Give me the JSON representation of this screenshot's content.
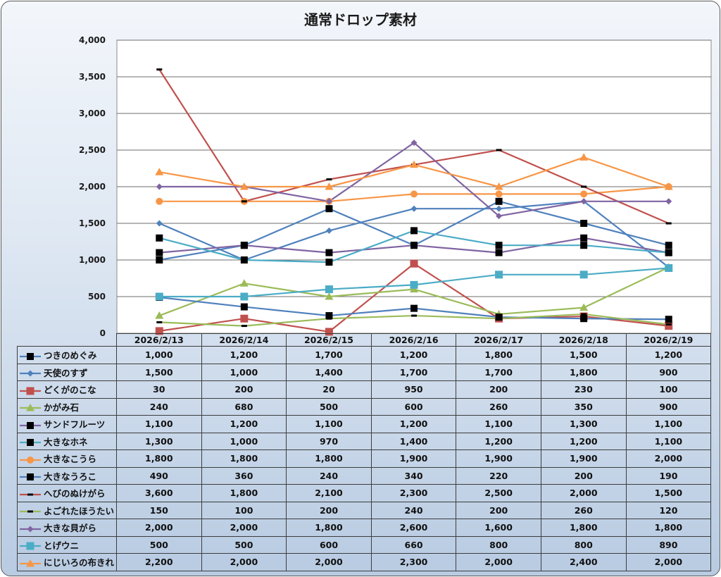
{
  "chart_data": {
    "type": "line",
    "title": "通常ドロップ素材",
    "xlabel": "",
    "ylabel": "",
    "ylim": [
      0,
      4000
    ],
    "yticks": [
      0,
      500,
      1000,
      1500,
      2000,
      2500,
      3000,
      3500,
      4000
    ],
    "ytick_labels": [
      "0",
      "500",
      "1,000",
      "1,500",
      "2,000",
      "2,500",
      "3,000",
      "3,500",
      "4,000"
    ],
    "grid": true,
    "legend": "data-table-left",
    "categories": [
      "2026/2/13",
      "2026/2/14",
      "2026/2/15",
      "2026/2/16",
      "2026/2/17",
      "2026/2/18",
      "2026/2/19"
    ],
    "series": [
      {
        "name": "つきのめぐみ",
        "color": "#4f81bd",
        "marker": "square-black",
        "values": [
          1000,
          1200,
          1700,
          1200,
          1800,
          1500,
          1200
        ],
        "labels": [
          "1,000",
          "1,200",
          "1,700",
          "1,200",
          "1,800",
          "1,500",
          "1,200"
        ]
      },
      {
        "name": "天使のすず",
        "color": "#4f81bd",
        "marker": "diamond",
        "values": [
          1500,
          1000,
          1400,
          1700,
          1700,
          1800,
          900
        ],
        "labels": [
          "1,500",
          "1,000",
          "1,400",
          "1,700",
          "1,700",
          "1,800",
          "900"
        ]
      },
      {
        "name": "どくがのこな",
        "color": "#c0504d",
        "marker": "square",
        "values": [
          30,
          200,
          20,
          950,
          200,
          230,
          100
        ],
        "labels": [
          "30",
          "200",
          "20",
          "950",
          "200",
          "230",
          "100"
        ]
      },
      {
        "name": "かがみ石",
        "color": "#9bbb59",
        "marker": "triangle",
        "values": [
          240,
          680,
          500,
          600,
          260,
          350,
          900
        ],
        "labels": [
          "240",
          "680",
          "500",
          "600",
          "260",
          "350",
          "900"
        ]
      },
      {
        "name": "サンドフルーツ",
        "color": "#8064a2",
        "marker": "square-black",
        "values": [
          1100,
          1200,
          1100,
          1200,
          1100,
          1300,
          1100
        ],
        "labels": [
          "1,100",
          "1,200",
          "1,100",
          "1,200",
          "1,100",
          "1,300",
          "1,100"
        ]
      },
      {
        "name": "大きなホネ",
        "color": "#4bacc6",
        "marker": "square-black",
        "values": [
          1300,
          1000,
          970,
          1400,
          1200,
          1200,
          1100
        ],
        "labels": [
          "1,300",
          "1,000",
          "970",
          "1,400",
          "1,200",
          "1,200",
          "1,100"
        ]
      },
      {
        "name": "大きなこうら",
        "color": "#f79646",
        "marker": "circle",
        "values": [
          1800,
          1800,
          1800,
          1900,
          1900,
          1900,
          2000
        ],
        "labels": [
          "1,800",
          "1,800",
          "1,800",
          "1,900",
          "1,900",
          "1,900",
          "2,000"
        ]
      },
      {
        "name": "大きなうろこ",
        "color": "#4f81bd",
        "marker": "square-black",
        "values": [
          490,
          360,
          240,
          340,
          220,
          200,
          190
        ],
        "labels": [
          "490",
          "360",
          "240",
          "340",
          "220",
          "200",
          "190"
        ]
      },
      {
        "name": "へびのぬけがら",
        "color": "#c0504d",
        "marker": "dash-black",
        "values": [
          3600,
          1800,
          2100,
          2300,
          2500,
          2000,
          1500
        ],
        "labels": [
          "3,600",
          "1,800",
          "2,100",
          "2,300",
          "2,500",
          "2,000",
          "1,500"
        ]
      },
      {
        "name": "よごれたほうたい",
        "color": "#9bbb59",
        "marker": "dash-black",
        "values": [
          150,
          100,
          200,
          240,
          200,
          260,
          120
        ],
        "labels": [
          "150",
          "100",
          "200",
          "240",
          "200",
          "260",
          "120"
        ]
      },
      {
        "name": "大きな貝がら",
        "color": "#8064a2",
        "marker": "diamond",
        "values": [
          2000,
          2000,
          1800,
          2600,
          1600,
          1800,
          1800
        ],
        "labels": [
          "2,000",
          "2,000",
          "1,800",
          "2,600",
          "1,600",
          "1,800",
          "1,800"
        ]
      },
      {
        "name": "とげウニ",
        "color": "#4bacc6",
        "marker": "square",
        "values": [
          500,
          500,
          600,
          660,
          800,
          800,
          890
        ],
        "labels": [
          "500",
          "500",
          "600",
          "660",
          "800",
          "800",
          "890"
        ]
      },
      {
        "name": "にじいろの布きれ",
        "color": "#f79646",
        "marker": "triangle",
        "values": [
          2200,
          2000,
          2000,
          2300,
          2000,
          2400,
          2000
        ],
        "labels": [
          "2,200",
          "2,000",
          "2,000",
          "2,300",
          "2,000",
          "2,400",
          "2,000"
        ]
      }
    ]
  }
}
